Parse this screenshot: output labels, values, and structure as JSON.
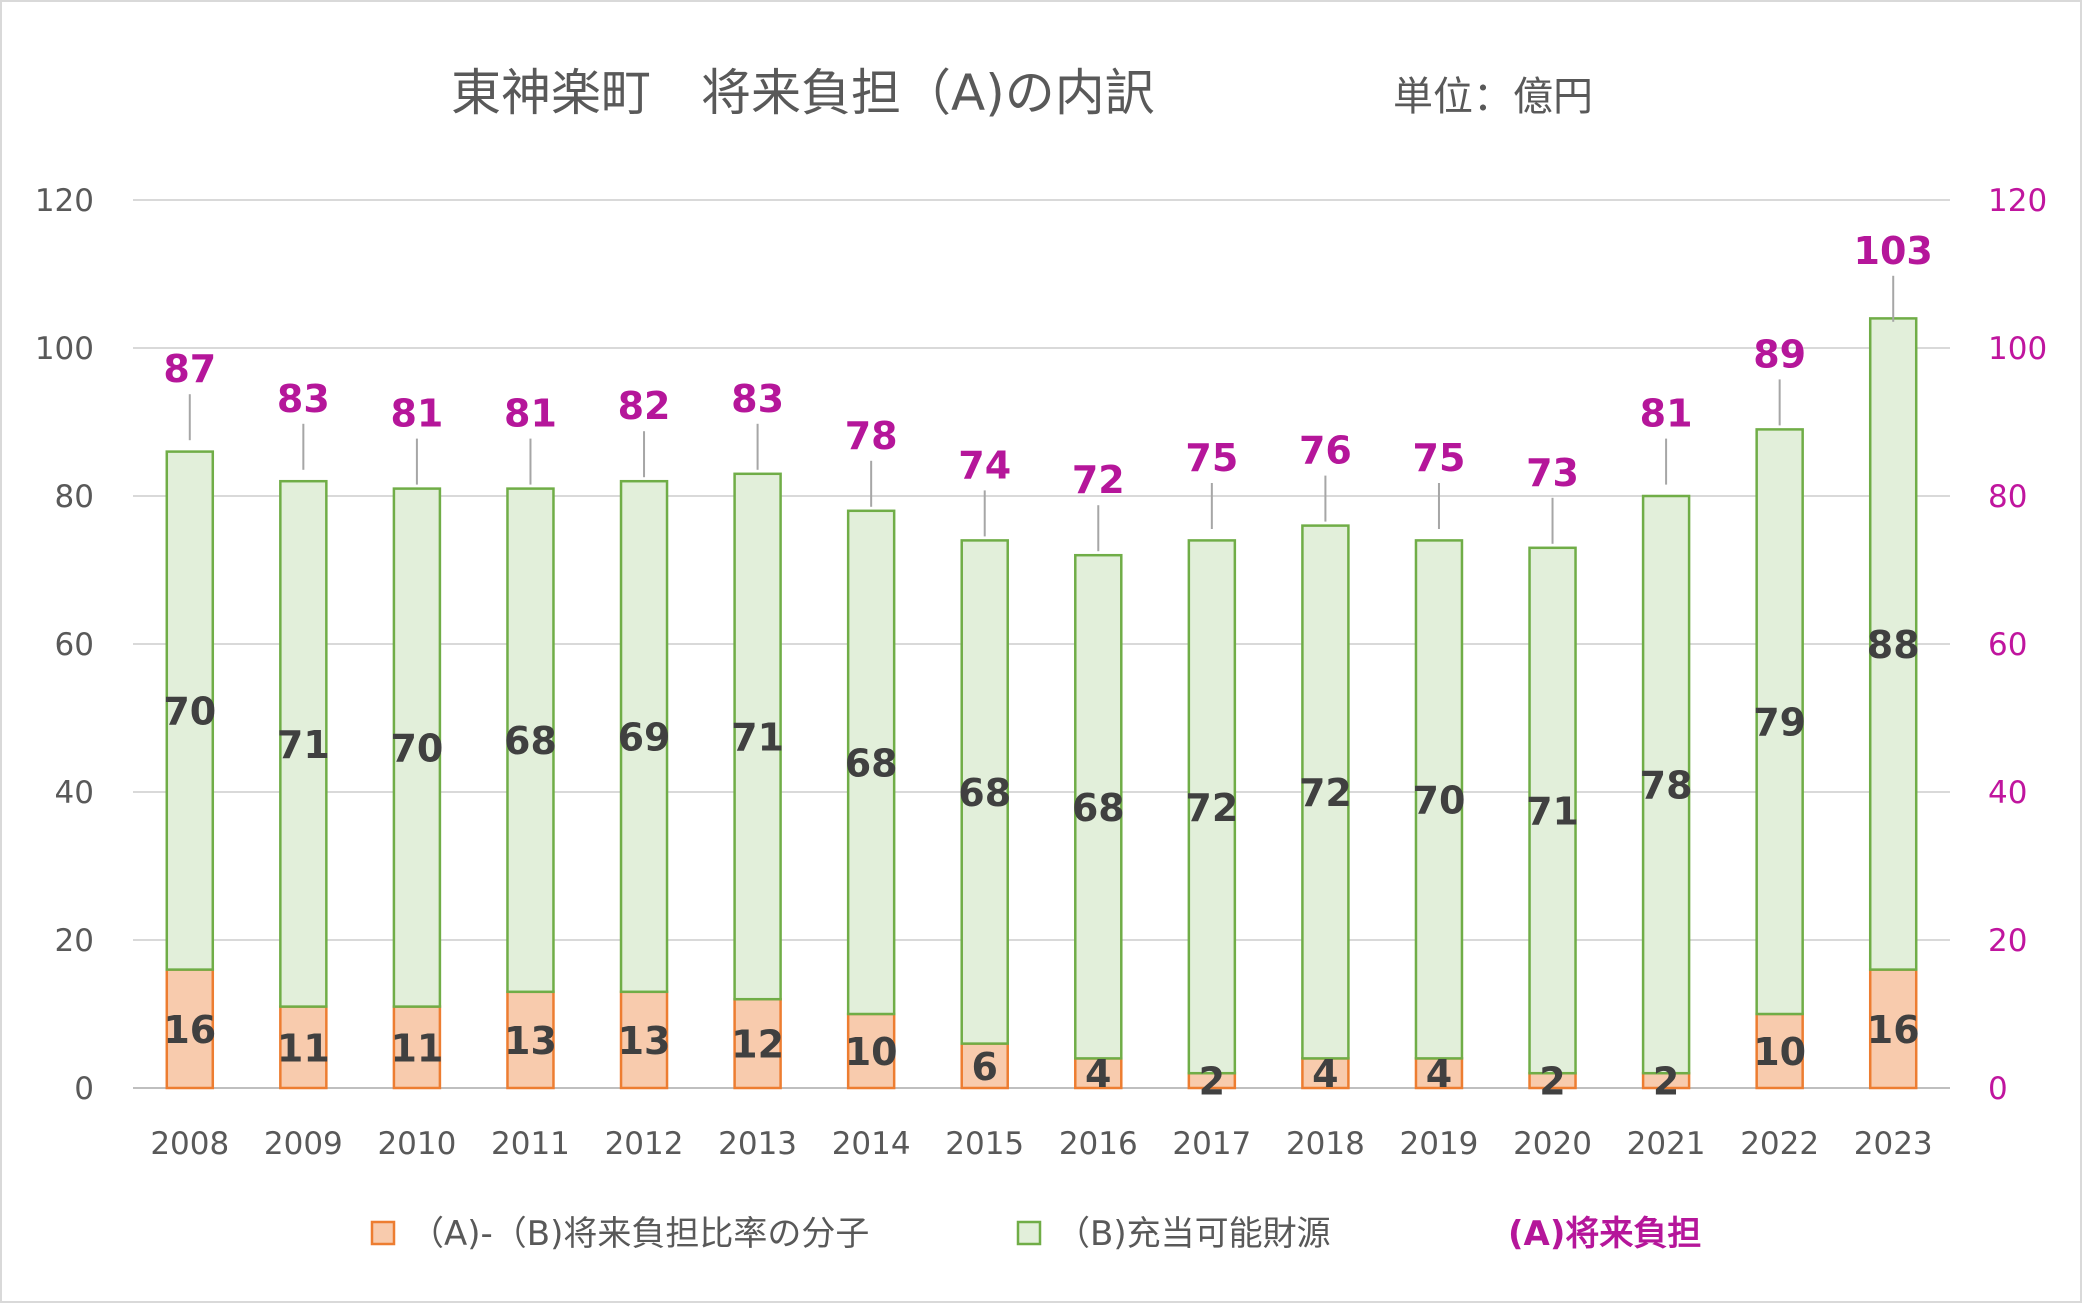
{
  "title": {
    "main": "東神楽町　将来負担（A)の内訳",
    "unit": "単位：億円"
  },
  "legend": {
    "numerator": "（A)-（B)将来負担比率の分子",
    "resources": "（B)充当可能財源",
    "total": "(A)将来負担"
  },
  "colors": {
    "numerator_fill": "#F8CBAD",
    "numerator_stroke": "#ED7D31",
    "resources_fill": "#E2EFDA",
    "resources_stroke": "#70AD47",
    "total_label": "#B5169A",
    "right_axis": "#C0159E",
    "text": "#595959",
    "grid": "#D9D9D9"
  },
  "chart_data": {
    "type": "bar",
    "stacked": true,
    "title": "東神楽町　将来負担（A)の内訳",
    "subtitle": "単位：億円",
    "categories": [
      "2008",
      "2009",
      "2010",
      "2011",
      "2012",
      "2013",
      "2014",
      "2015",
      "2016",
      "2017",
      "2018",
      "2019",
      "2020",
      "2021",
      "2022",
      "2023"
    ],
    "series": [
      {
        "name": "（A)-（B)将来負担比率の分子",
        "values": [
          16,
          11,
          11,
          13,
          13,
          12,
          10,
          6,
          4,
          2,
          4,
          4,
          2,
          2,
          10,
          16
        ]
      },
      {
        "name": "（B)充当可能財源",
        "values": [
          70,
          71,
          70,
          68,
          69,
          71,
          68,
          68,
          68,
          72,
          72,
          70,
          71,
          78,
          79,
          88
        ]
      }
    ],
    "totals": {
      "name": "(A)将来負担",
      "values": [
        87,
        83,
        81,
        81,
        82,
        83,
        78,
        74,
        72,
        75,
        76,
        75,
        73,
        81,
        89,
        103
      ]
    },
    "ylim": [
      0,
      120
    ],
    "y2lim": [
      0,
      120
    ],
    "yticks": [
      0,
      20,
      40,
      60,
      80,
      100,
      120
    ],
    "grid": true,
    "legend_position": "bottom"
  }
}
